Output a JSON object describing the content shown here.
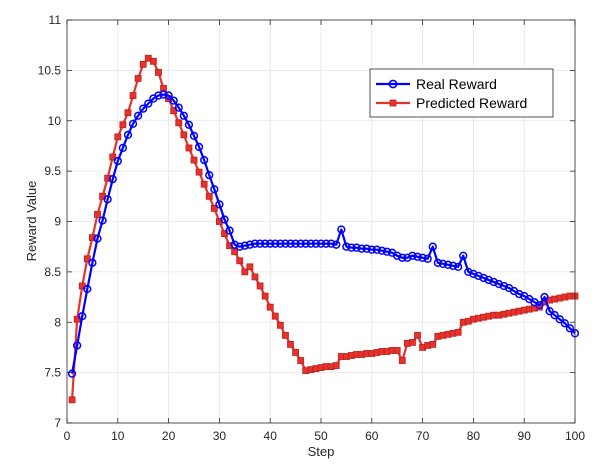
{
  "chart_data": {
    "type": "line",
    "title": "",
    "xlabel": "Step",
    "ylabel": "Reward Value",
    "xlim": [
      0,
      100
    ],
    "ylim": [
      7,
      11
    ],
    "xticks": [
      0,
      10,
      20,
      30,
      40,
      50,
      60,
      70,
      80,
      90,
      100
    ],
    "yticks": [
      7,
      7.5,
      8,
      8.5,
      9,
      9.5,
      10,
      10.5,
      11
    ],
    "ytick_labels": [
      "7",
      "7.5",
      "8",
      "8.5",
      "9",
      "9.5",
      "10",
      "10.5",
      "11"
    ],
    "grid": true,
    "legend_position": "top-right",
    "x": [
      1,
      2,
      3,
      4,
      5,
      6,
      7,
      8,
      9,
      10,
      11,
      12,
      13,
      14,
      15,
      16,
      17,
      18,
      19,
      20,
      21,
      22,
      23,
      24,
      25,
      26,
      27,
      28,
      29,
      30,
      31,
      32,
      33,
      34,
      35,
      36,
      37,
      38,
      39,
      40,
      41,
      42,
      43,
      44,
      45,
      46,
      47,
      48,
      49,
      50,
      51,
      52,
      53,
      54,
      55,
      56,
      57,
      58,
      59,
      60,
      61,
      62,
      63,
      64,
      65,
      66,
      67,
      68,
      69,
      70,
      71,
      72,
      73,
      74,
      75,
      76,
      77,
      78,
      79,
      80,
      81,
      82,
      83,
      84,
      85,
      86,
      87,
      88,
      89,
      90,
      91,
      92,
      93,
      94,
      95,
      96,
      97,
      98,
      99,
      100
    ],
    "series": [
      {
        "name": "Real Reward",
        "color": "#0000ff",
        "marker": "circle",
        "values": [
          7.49,
          7.77,
          8.06,
          8.33,
          8.59,
          8.83,
          9.01,
          9.22,
          9.42,
          9.6,
          9.73,
          9.86,
          9.97,
          10.05,
          10.12,
          10.17,
          10.22,
          10.25,
          10.26,
          10.25,
          10.2,
          10.13,
          10.05,
          9.96,
          9.85,
          9.74,
          9.61,
          9.46,
          9.32,
          9.17,
          9.02,
          8.91,
          8.77,
          8.75,
          8.76,
          8.77,
          8.78,
          8.78,
          8.78,
          8.78,
          8.78,
          8.78,
          8.78,
          8.78,
          8.78,
          8.78,
          8.78,
          8.78,
          8.78,
          8.78,
          8.78,
          8.78,
          8.77,
          8.92,
          8.75,
          8.74,
          8.74,
          8.73,
          8.73,
          8.72,
          8.72,
          8.71,
          8.7,
          8.69,
          8.66,
          8.64,
          8.64,
          8.66,
          8.65,
          8.64,
          8.63,
          8.75,
          8.59,
          8.58,
          8.57,
          8.56,
          8.55,
          8.66,
          8.5,
          8.48,
          8.46,
          8.44,
          8.42,
          8.4,
          8.38,
          8.36,
          8.34,
          8.31,
          8.28,
          8.26,
          8.23,
          8.2,
          8.17,
          8.25,
          8.11,
          8.07,
          8.03,
          7.99,
          7.94,
          7.89
        ]
      },
      {
        "name": "Predicted Reward",
        "color": "#e5322d",
        "marker": "square",
        "values": [
          7.23,
          8.03,
          8.36,
          8.63,
          8.84,
          9.07,
          9.25,
          9.43,
          9.64,
          9.84,
          9.96,
          10.08,
          10.25,
          10.42,
          10.56,
          10.62,
          10.59,
          10.48,
          10.32,
          10.22,
          10.1,
          9.98,
          9.86,
          9.73,
          9.61,
          9.49,
          9.37,
          9.25,
          9.13,
          9.0,
          8.88,
          8.76,
          8.7,
          8.61,
          8.5,
          8.55,
          8.45,
          8.36,
          8.26,
          8.15,
          8.06,
          7.97,
          7.87,
          7.78,
          7.7,
          7.62,
          7.52,
          7.53,
          7.54,
          7.55,
          7.56,
          7.56,
          7.57,
          7.66,
          7.66,
          7.67,
          7.68,
          7.68,
          7.69,
          7.69,
          7.7,
          7.71,
          7.71,
          7.72,
          7.72,
          7.62,
          7.79,
          7.8,
          7.87,
          7.75,
          7.77,
          7.78,
          7.86,
          7.87,
          7.88,
          7.89,
          7.9,
          8.0,
          8.01,
          8.03,
          8.04,
          8.05,
          8.06,
          8.07,
          8.07,
          8.08,
          8.09,
          8.1,
          8.11,
          8.12,
          8.13,
          8.14,
          8.15,
          8.2,
          8.22,
          8.23,
          8.24,
          8.25,
          8.26,
          8.26
        ]
      }
    ]
  }
}
